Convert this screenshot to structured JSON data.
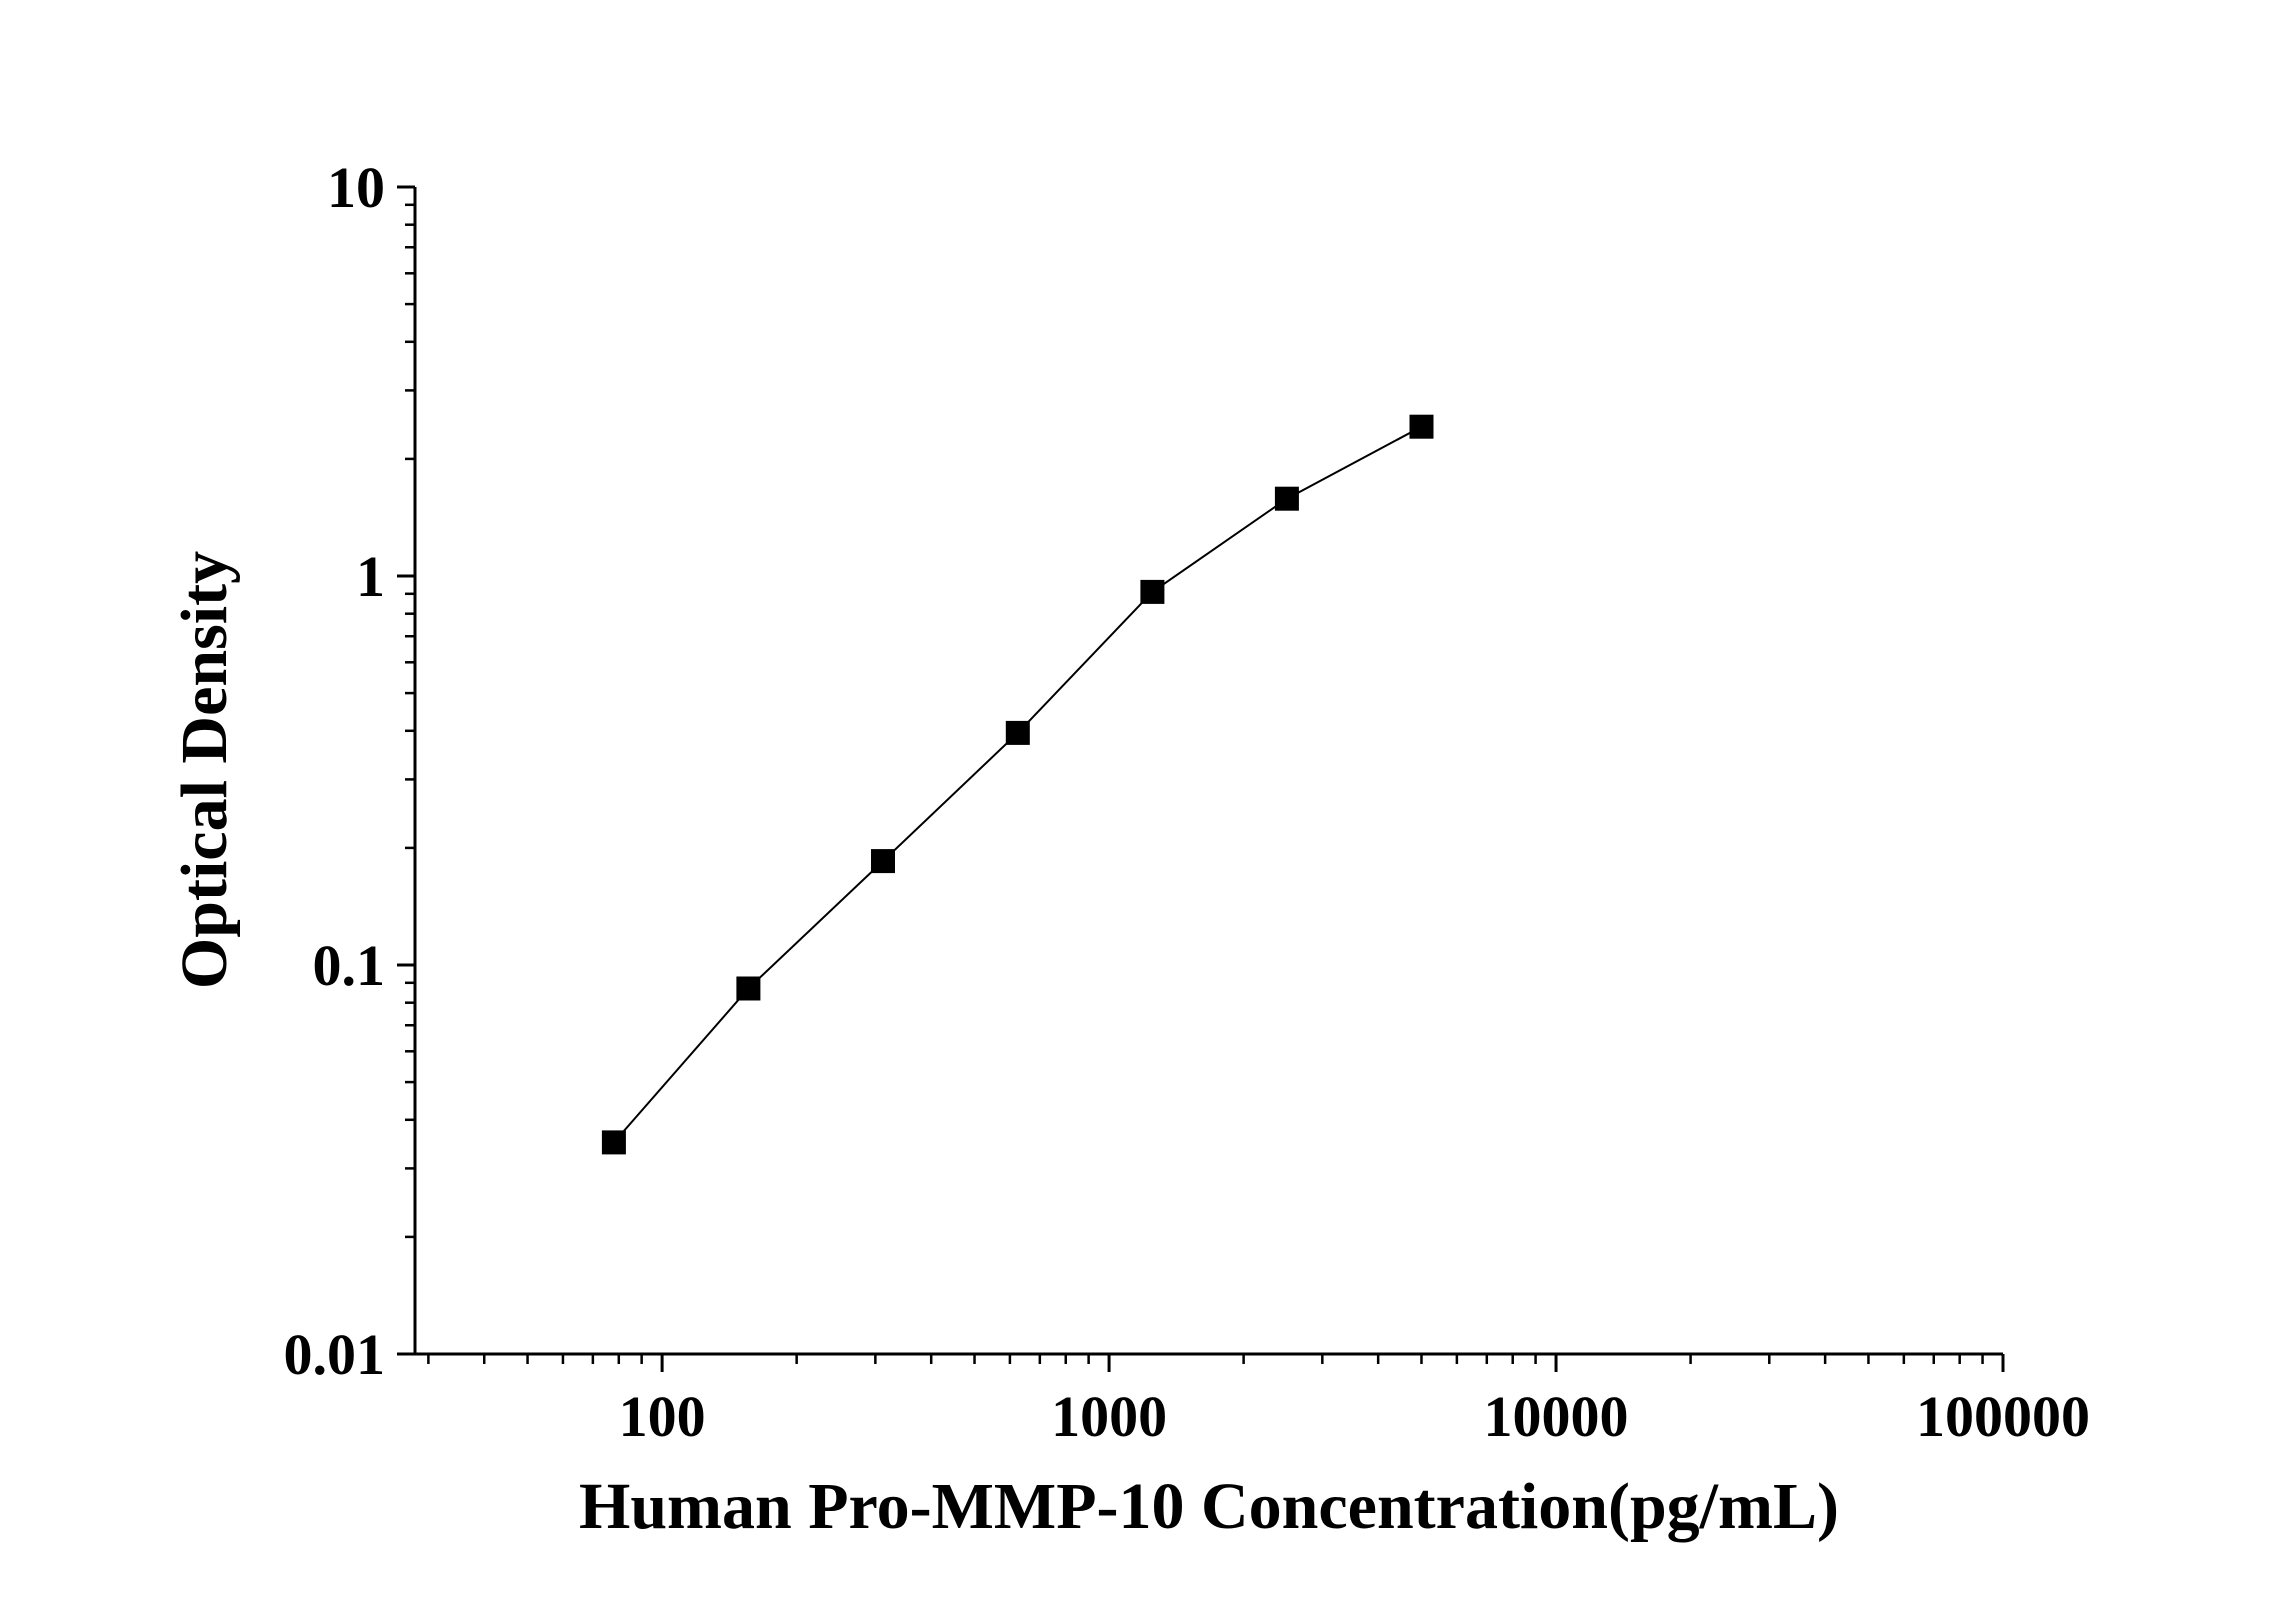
{
  "chart_data": {
    "type": "scatter",
    "title": "",
    "xlabel": "Human Pro-MMP-10 Concentration(pg/mL)",
    "ylabel": "Optical Density",
    "x_scale": "log",
    "y_scale": "log",
    "xlim": [
      28,
      100000
    ],
    "ylim": [
      0.01,
      10
    ],
    "x_ticks": [
      100,
      1000,
      10000,
      100000
    ],
    "x_tick_labels": [
      "100",
      "1000",
      "10000",
      "100000"
    ],
    "y_ticks": [
      0.01,
      0.1,
      1,
      10
    ],
    "y_tick_labels": [
      "0.01",
      "0.1",
      "1",
      "10"
    ],
    "grid": false,
    "legend": false,
    "colors": {
      "series": "#000000",
      "axis": "#000000"
    },
    "series": [
      {
        "marker": "square",
        "connected": true,
        "points": [
          {
            "x": 78,
            "y": 0.035
          },
          {
            "x": 156,
            "y": 0.087
          },
          {
            "x": 312,
            "y": 0.185
          },
          {
            "x": 625,
            "y": 0.395
          },
          {
            "x": 1250,
            "y": 0.91
          },
          {
            "x": 2500,
            "y": 1.58
          },
          {
            "x": 5000,
            "y": 2.42
          }
        ]
      }
    ]
  }
}
